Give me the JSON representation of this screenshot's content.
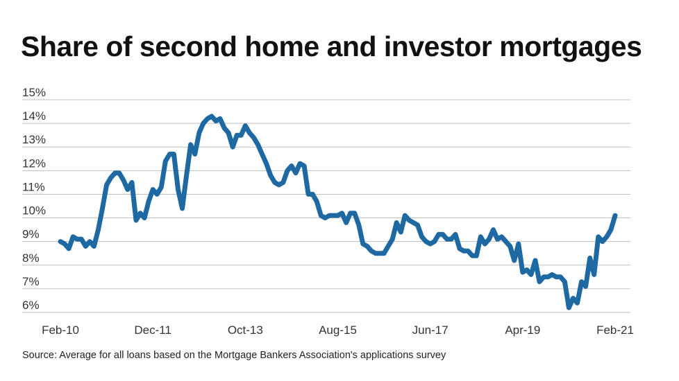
{
  "title": "Share of second home and investor mortgages",
  "source": "Source: Average for all loans based on the Mortgage Bankers Association's applications survey",
  "chart_data": {
    "type": "line",
    "title": "Share of second home and investor mortgages",
    "xlabel": "",
    "ylabel": "",
    "ylim": [
      5.5,
      15
    ],
    "yticks": [
      6,
      7,
      8,
      9,
      10,
      11,
      12,
      13,
      14,
      15
    ],
    "ytick_labels": [
      "6%",
      "7%",
      "8%",
      "9%",
      "10%",
      "11%",
      "12%",
      "13%",
      "14%",
      "15%"
    ],
    "x_tick_labels": [
      {
        "label": "Feb-10",
        "month_index": 0
      },
      {
        "label": "Dec-11",
        "month_index": 22
      },
      {
        "label": "Oct-13",
        "month_index": 44
      },
      {
        "label": "Aug-15",
        "month_index": 66
      },
      {
        "label": "Jun-17",
        "month_index": 88
      },
      {
        "label": "Apr-19",
        "month_index": 110
      },
      {
        "label": "Feb-21",
        "month_index": 132
      }
    ],
    "grid": true,
    "colors": {
      "line": "#1f69a3",
      "grid": "#bfbfbf"
    },
    "series": [
      {
        "points": [
          [
            0,
            9.0
          ],
          [
            1,
            8.9
          ],
          [
            2,
            8.7
          ],
          [
            3,
            9.2
          ],
          [
            4,
            9.1
          ],
          [
            5,
            9.1
          ],
          [
            6,
            8.8
          ],
          [
            7,
            9.0
          ],
          [
            8,
            8.8
          ],
          [
            9,
            9.5
          ],
          [
            10,
            10.4
          ],
          [
            11,
            11.4
          ],
          [
            12,
            11.7
          ],
          [
            13,
            11.9
          ],
          [
            14,
            11.9
          ],
          [
            15,
            11.6
          ],
          [
            16,
            11.2
          ],
          [
            17,
            11.5
          ],
          [
            18,
            9.9
          ],
          [
            19,
            10.2
          ],
          [
            20,
            10.0
          ],
          [
            21,
            10.7
          ],
          [
            22,
            11.2
          ],
          [
            23,
            11.0
          ],
          [
            24,
            11.3
          ],
          [
            25,
            12.4
          ],
          [
            26,
            12.7
          ],
          [
            27,
            12.7
          ],
          [
            28,
            11.2
          ],
          [
            29,
            10.4
          ],
          [
            30,
            11.8
          ],
          [
            31,
            13.1
          ],
          [
            32,
            12.7
          ],
          [
            33,
            13.6
          ],
          [
            34,
            14.0
          ],
          [
            35,
            14.2
          ],
          [
            36,
            14.3
          ],
          [
            37,
            14.1
          ],
          [
            38,
            14.2
          ],
          [
            39,
            13.8
          ],
          [
            40,
            13.6
          ],
          [
            41,
            13.0
          ],
          [
            42,
            13.5
          ],
          [
            43,
            13.5
          ],
          [
            44,
            13.9
          ],
          [
            45,
            13.6
          ],
          [
            46,
            13.4
          ],
          [
            47,
            13.1
          ],
          [
            48,
            12.7
          ],
          [
            49,
            12.3
          ],
          [
            50,
            11.8
          ],
          [
            51,
            11.5
          ],
          [
            52,
            11.4
          ],
          [
            53,
            11.5
          ],
          [
            54,
            12.0
          ],
          [
            55,
            12.2
          ],
          [
            56,
            11.9
          ],
          [
            57,
            12.3
          ],
          [
            58,
            12.2
          ],
          [
            59,
            11.0
          ],
          [
            60,
            11.0
          ],
          [
            61,
            10.7
          ],
          [
            62,
            10.1
          ],
          [
            63,
            10.0
          ],
          [
            64,
            10.1
          ],
          [
            65,
            10.1
          ],
          [
            66,
            10.1
          ],
          [
            67,
            10.2
          ],
          [
            68,
            9.8
          ],
          [
            69,
            10.2
          ],
          [
            70,
            10.2
          ],
          [
            71,
            9.7
          ],
          [
            72,
            8.9
          ],
          [
            73,
            8.8
          ],
          [
            74,
            8.6
          ],
          [
            75,
            8.5
          ],
          [
            76,
            8.5
          ],
          [
            77,
            8.5
          ],
          [
            78,
            8.8
          ],
          [
            79,
            9.1
          ],
          [
            80,
            9.8
          ],
          [
            81,
            9.4
          ],
          [
            82,
            10.1
          ],
          [
            83,
            9.9
          ],
          [
            84,
            9.8
          ],
          [
            85,
            9.7
          ],
          [
            86,
            9.2
          ],
          [
            87,
            9.0
          ],
          [
            88,
            8.9
          ],
          [
            89,
            9.0
          ],
          [
            90,
            9.3
          ],
          [
            91,
            9.3
          ],
          [
            92,
            9.1
          ],
          [
            93,
            9.1
          ],
          [
            94,
            9.3
          ],
          [
            95,
            8.7
          ],
          [
            96,
            8.6
          ],
          [
            97,
            8.6
          ],
          [
            98,
            8.4
          ],
          [
            99,
            8.4
          ],
          [
            100,
            9.2
          ],
          [
            101,
            8.9
          ],
          [
            102,
            9.1
          ],
          [
            103,
            9.5
          ],
          [
            104,
            9.1
          ],
          [
            105,
            9.2
          ],
          [
            106,
            9.0
          ],
          [
            107,
            8.8
          ],
          [
            108,
            8.2
          ],
          [
            109,
            8.9
          ],
          [
            110,
            7.7
          ],
          [
            111,
            7.8
          ],
          [
            112,
            7.6
          ],
          [
            113,
            8.2
          ],
          [
            114,
            7.3
          ],
          [
            115,
            7.5
          ],
          [
            116,
            7.5
          ],
          [
            117,
            7.6
          ],
          [
            118,
            7.5
          ],
          [
            119,
            7.5
          ],
          [
            120,
            7.3
          ],
          [
            121,
            6.2
          ],
          [
            122,
            6.6
          ],
          [
            123,
            6.4
          ],
          [
            124,
            7.3
          ],
          [
            125,
            7.1
          ],
          [
            126,
            8.3
          ],
          [
            127,
            7.6
          ],
          [
            128,
            9.2
          ],
          [
            129,
            9.0
          ],
          [
            130,
            9.2
          ],
          [
            131,
            9.5
          ],
          [
            132,
            10.1
          ]
        ]
      }
    ]
  }
}
